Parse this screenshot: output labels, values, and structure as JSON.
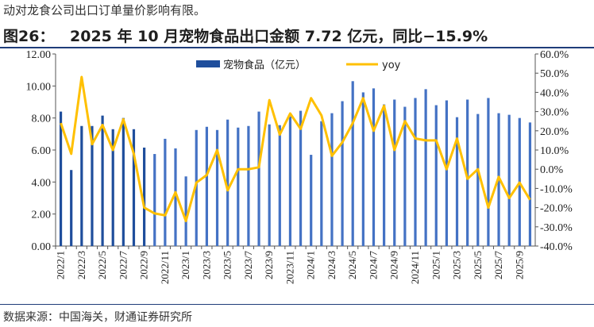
{
  "header": {
    "note": "动对龙食公司出口订单量价影响有限。",
    "figure_label": "图26：",
    "title": "2025 年 10 月宠物食品出口金额 7.72 亿元，同比−15.9%",
    "source": "数据来源：中国海关，财通证券研究所"
  },
  "chart_data": {
    "type": "bar+line",
    "categories": [
      "2022/1",
      "2022/2",
      "2022/3",
      "2022/4",
      "2022/5",
      "2022/6",
      "2022/7",
      "2022/8",
      "2022/9",
      "2022/10",
      "2022/11",
      "2022/12",
      "2023/1",
      "2023/2",
      "2023/3",
      "2023/4",
      "2023/5",
      "2023/6",
      "2023/7",
      "2023/8",
      "2023/9",
      "2023/10",
      "2023/11",
      "2023/12",
      "2024/1",
      "2024/2",
      "2024/3",
      "2024/4",
      "2024/5",
      "2024/6",
      "2024/7",
      "2024/8",
      "2024/9",
      "2024/10",
      "2024/11",
      "2024/12",
      "2025/1",
      "2025/2",
      "2025/3",
      "2025/4",
      "2025/5",
      "2025/6",
      "2025/7",
      "2025/8",
      "2025/9",
      "2025/10"
    ],
    "x_tick_labels": [
      "2022/1",
      "2022/3",
      "2022/5",
      "2022/7",
      "2022/9",
      "2022/11",
      "2023/1",
      "2023/3",
      "2023/5",
      "2023/7",
      "2023/9",
      "2023/11",
      "2024/1",
      "2024/3",
      "2024/5",
      "2024/7",
      "2024/9",
      "2024/11",
      "2025/1",
      "2025/3",
      "2025/5",
      "2025/7",
      "2025/9"
    ],
    "series": [
      {
        "name": "宠物食品（亿元）",
        "axis": "left",
        "kind": "bar",
        "color_dark": "#1f4e9c",
        "color_light": "#4472c4",
        "values": [
          8.4,
          4.75,
          7.5,
          7.5,
          8.15,
          7.3,
          8.0,
          7.3,
          6.15,
          5.75,
          6.7,
          6.1,
          4.35,
          7.25,
          7.45,
          7.25,
          7.9,
          7.4,
          7.5,
          8.4,
          7.6,
          7.55,
          8.1,
          8.45,
          5.7,
          7.8,
          8.3,
          9.05,
          10.3,
          9.6,
          9.85,
          8.85,
          9.15,
          8.7,
          9.25,
          9.8,
          8.8,
          9.1,
          8.05,
          9.15,
          8.25,
          9.25,
          8.3,
          8.2,
          8.0,
          7.72
        ]
      },
      {
        "name": "yoy",
        "axis": "right",
        "kind": "line",
        "color": "#ffc000",
        "values": [
          24,
          8,
          48,
          13,
          23,
          10,
          26,
          8,
          -20,
          -23,
          -24,
          -12,
          -27,
          -7,
          -3,
          10,
          -11,
          0,
          0,
          1,
          36,
          18,
          29,
          21,
          37,
          28,
          7,
          14,
          24,
          37,
          20,
          33,
          10,
          25,
          16,
          15,
          15,
          0,
          16,
          -5,
          0,
          -20,
          -4,
          -15,
          -7,
          -15.9
        ]
      }
    ],
    "left_axis": {
      "min": 0,
      "max": 12,
      "ticks": [
        "0.00",
        "2.00",
        "4.00",
        "6.00",
        "8.00",
        "10.00",
        "12.00"
      ]
    },
    "right_axis": {
      "min": -40,
      "max": 60,
      "ticks": [
        "-40.0%",
        "-30.0%",
        "-20.0%",
        "-10.0%",
        "0.0%",
        "10.0%",
        "20.0%",
        "30.0%",
        "40.0%",
        "50.0%",
        "60.0%"
      ]
    },
    "dark_bar_count": 9,
    "legend": {
      "position": "top-center",
      "bar_label": "宠物食品（亿元）",
      "line_label": "yoy"
    },
    "grid": false
  }
}
